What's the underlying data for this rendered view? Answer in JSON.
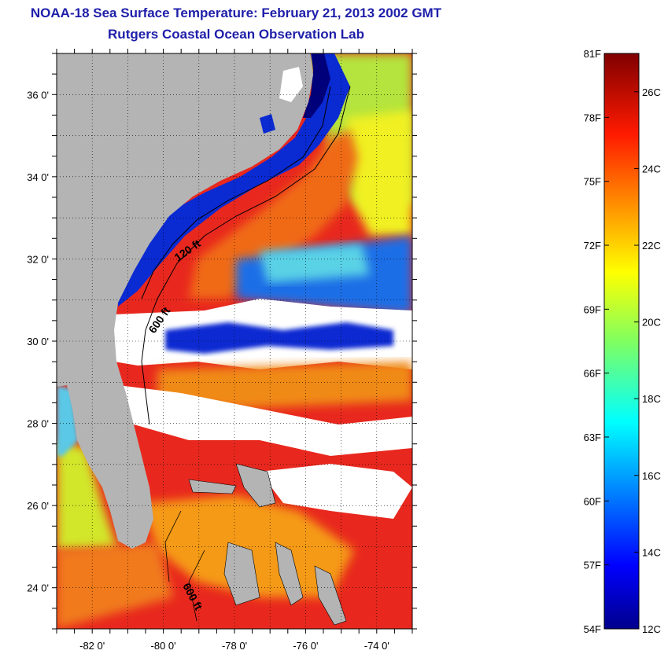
{
  "title": {
    "line1": "NOAA-18 Sea Surface Temperature:  February 21, 2013 2002 GMT",
    "line2": "Rutgers Coastal Ocean Observation Lab"
  },
  "map": {
    "lon_range": [
      -83,
      -73
    ],
    "lat_range": [
      23,
      37
    ],
    "lat_labels": [
      {
        "lat": 24,
        "label": "24 0'"
      },
      {
        "lat": 26,
        "label": "26 0'"
      },
      {
        "lat": 28,
        "label": "28 0'"
      },
      {
        "lat": 30,
        "label": "30 0'"
      },
      {
        "lat": 32,
        "label": "32 0'"
      },
      {
        "lat": 34,
        "label": "34 0'"
      },
      {
        "lat": 36,
        "label": "36 0'"
      }
    ],
    "lon_labels": [
      {
        "lon": -82,
        "label": "-82 0'"
      },
      {
        "lon": -80,
        "label": "-80 0'"
      },
      {
        "lon": -78,
        "label": "-78 0'"
      },
      {
        "lon": -76,
        "label": "-76 0'"
      },
      {
        "lon": -74,
        "label": "-74 0'"
      }
    ],
    "contour_labels": [
      "120 ft",
      "600 ft",
      "600 ft"
    ],
    "colors": {
      "land": "#b4b4b4",
      "cloud": "#ffffff",
      "warm": "#e8281e",
      "orange": "#f59a14",
      "cool": "#0a2ad2",
      "cold": "#00007a",
      "contour": "#000000"
    }
  },
  "colorbar": {
    "celsius_range": [
      12,
      27
    ],
    "fahrenheit_labels": [
      "81F",
      "78F",
      "75F",
      "72F",
      "69F",
      "66F",
      "63F",
      "60F",
      "57F",
      "54F"
    ],
    "celsius_labels": [
      "26C",
      "24C",
      "22C",
      "20C",
      "18C",
      "16C",
      "14C",
      "12C"
    ]
  }
}
